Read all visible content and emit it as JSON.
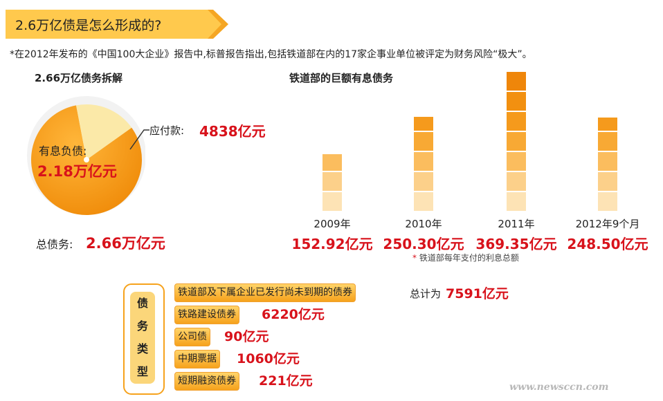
{
  "header": {
    "title": "2.6万亿债是怎么形成的?"
  },
  "note": "*在2012年发布的《中国100大企业》报告中,标普报告指出,包括铁道部在内的17家企事业单位被评定为财务风险“极大”。",
  "pie": {
    "section_title": "2.66万亿债务拆解",
    "main_label": "有息负债:",
    "main_value": "2.18万亿元",
    "small_label": "应付款:",
    "small_value": "4838亿元",
    "total_label": "总债务:",
    "total_value": "2.66万亿元"
  },
  "bars": {
    "section_title": "铁道部的巨额有息债务",
    "footnote": "铁道部每年支付的利息总额",
    "footnote_mark": "*"
  },
  "debt_types": {
    "side_label": [
      "债",
      "务",
      "类",
      "型"
    ],
    "items": [
      {
        "label": "铁道部及下属企业已发行尚未到期的债券",
        "prefix": "总计为",
        "value": "7591亿元"
      },
      {
        "label": "铁路建设债券",
        "prefix": "",
        "value": "6220亿元"
      },
      {
        "label": "公司债",
        "prefix": "",
        "value": "90亿元"
      },
      {
        "label": "中期票据",
        "prefix": "",
        "value": "1060亿元"
      },
      {
        "label": "短期融资债券",
        "prefix": "",
        "value": "221亿元"
      }
    ]
  },
  "watermark": "www.newsccn.com",
  "colors": {
    "accent": "#f6a21c",
    "red": "#d8121b"
  },
  "chart_data": [
    {
      "type": "pie",
      "title": "2.66万亿债务拆解",
      "slices": [
        {
          "name": "有息负债",
          "value": 21800,
          "unit": "亿元"
        },
        {
          "name": "应付款",
          "value": 4838,
          "unit": "亿元"
        }
      ]
    },
    {
      "type": "bar",
      "title": "铁道部的巨额有息债务",
      "categories": [
        "2009年",
        "2010年",
        "2011年",
        "2012年9个月"
      ],
      "values": [
        152.92,
        250.3,
        369.35,
        248.5
      ],
      "value_labels": [
        "152.92亿元",
        "250.30亿元",
        "369.35亿元",
        "248.50亿元"
      ],
      "ylim": [
        0,
        369.35
      ]
    }
  ]
}
